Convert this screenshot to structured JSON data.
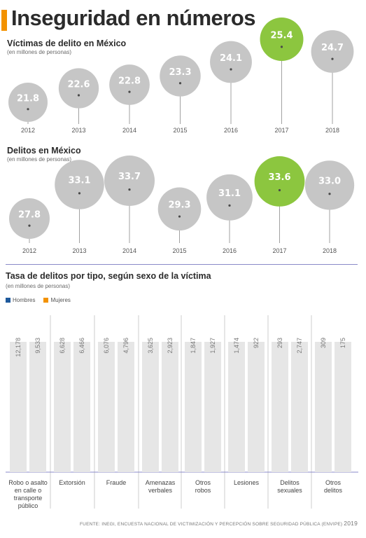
{
  "title": "Inseguridad en números",
  "colors": {
    "accent": "#f39200",
    "bubble": "#c6c6c6",
    "highlight": "#8cc63f",
    "bar": "#e6e6e6",
    "hombres": "#1f5a9c",
    "mujeres": "#f39200"
  },
  "source": {
    "text": "FUENTE: INEGI, ENCUESTA NACIONAL DE VICTIMIZACIÓN Y PERCEPCIÓN SOBRE SEGURIDAD PÚBLICA (ENVIPE)",
    "year": "2019"
  },
  "chart_data": [
    {
      "type": "bubble",
      "title": "Víctimas de delito en México",
      "subtitle": "(en millones de personas)",
      "categories": [
        "2012",
        "2013",
        "2014",
        "2015",
        "2016",
        "2017",
        "2018"
      ],
      "values": [
        21.8,
        22.6,
        22.8,
        23.3,
        24.1,
        25.4,
        24.7
      ],
      "labels": [
        "21.8",
        "22.6",
        "22.8",
        "23.3",
        "24.1",
        "25.4",
        "24.7"
      ],
      "highlight": "2017"
    },
    {
      "type": "bubble",
      "title": "Delitos en México",
      "subtitle": "(en millones de personas)",
      "categories": [
        "2012",
        "2013",
        "2014",
        "2015",
        "2016",
        "2017",
        "2018"
      ],
      "values": [
        27.8,
        33.1,
        33.7,
        29.3,
        31.1,
        33.6,
        33.0
      ],
      "labels": [
        "27.8",
        "33.1",
        "33.7",
        "29.3",
        "31.1",
        "33.6",
        "33.0"
      ],
      "highlight": "2017"
    },
    {
      "type": "bar",
      "title": "Tasa de delitos por tipo, según sexo de la víctima",
      "subtitle": "(en millones de personas)",
      "categories": [
        "Robo o asalto en calle o transporte público",
        "Extorsión",
        "Fraude",
        "Amenazas verbales",
        "Otros robos",
        "Lesiones",
        "Delitos sexuales",
        "Otros delitos"
      ],
      "category_lines": [
        [
          "Robo o asalto",
          "en calle o",
          "transporte",
          "público"
        ],
        [
          "Extorsión"
        ],
        [
          "Fraude"
        ],
        [
          "Amenazas",
          "verbales"
        ],
        [
          "Otros",
          "robos"
        ],
        [
          "Lesiones"
        ],
        [
          "Delitos",
          "sexuales"
        ],
        [
          "Otros",
          "delitos"
        ]
      ],
      "legend": [
        "Hombres",
        "Mujeres"
      ],
      "series": [
        {
          "name": "Hombres",
          "values": [
            12178,
            6628,
            6076,
            3625,
            1847,
            1474,
            293,
            309
          ],
          "labels": [
            "12,178",
            "6,628",
            "6,076",
            "3,625",
            "1,847",
            "1,474",
            "293",
            "309"
          ]
        },
        {
          "name": "Mujeres",
          "values": [
            9533,
            6466,
            4796,
            2923,
            1927,
            922,
            2747,
            175
          ],
          "labels": [
            "9,533",
            "6,466",
            "4,796",
            "2,923",
            "1,927",
            "922",
            "2,747",
            "175"
          ]
        }
      ]
    }
  ]
}
